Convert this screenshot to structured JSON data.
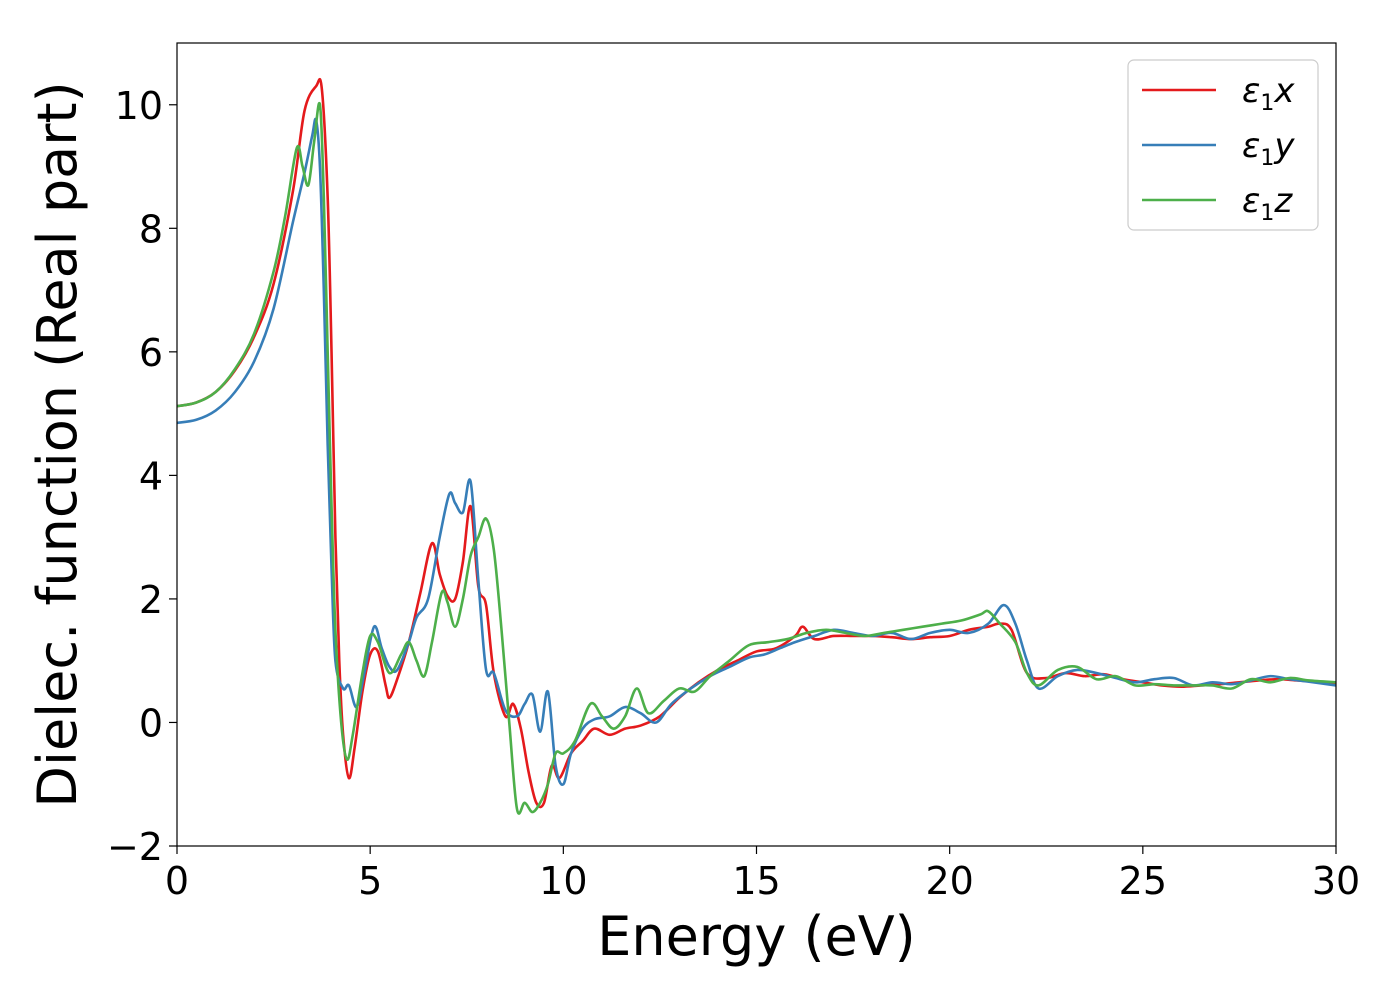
{
  "chart_data": {
    "type": "line",
    "title": "",
    "xlabel": "Energy (eV)",
    "ylabel": "Dielec. function (Real part)",
    "xlim": [
      0,
      30
    ],
    "ylim": [
      -2,
      11
    ],
    "xticks": [
      0,
      5,
      10,
      15,
      20,
      25,
      30
    ],
    "yticks": [
      -2,
      0,
      2,
      4,
      6,
      8,
      10
    ],
    "xtick_labels": [
      "0",
      "5",
      "10",
      "15",
      "20",
      "25",
      "30"
    ],
    "ytick_labels": [
      "−2",
      "0",
      "2",
      "4",
      "6",
      "8",
      "10"
    ],
    "grid": false,
    "legend_position": "top-right",
    "series": [
      {
        "name": "ε1x",
        "legend_base": "ε",
        "legend_sub": "1",
        "legend_suffix": "x",
        "color": "#e41a1c",
        "points": [
          [
            0,
            5.12
          ],
          [
            0.5,
            5.18
          ],
          [
            1.0,
            5.35
          ],
          [
            1.5,
            5.7
          ],
          [
            2.0,
            6.25
          ],
          [
            2.5,
            7.1
          ],
          [
            3.0,
            8.6
          ],
          [
            3.3,
            9.9
          ],
          [
            3.6,
            10.3
          ],
          [
            3.75,
            10.25
          ],
          [
            3.9,
            8.5
          ],
          [
            4.0,
            6.0
          ],
          [
            4.1,
            3.0
          ],
          [
            4.2,
            1.0
          ],
          [
            4.3,
            -0.2
          ],
          [
            4.45,
            -0.9
          ],
          [
            4.6,
            -0.4
          ],
          [
            4.8,
            0.5
          ],
          [
            5.0,
            1.1
          ],
          [
            5.2,
            1.15
          ],
          [
            5.4,
            0.6
          ],
          [
            5.5,
            0.4
          ],
          [
            5.7,
            0.7
          ],
          [
            6.0,
            1.3
          ],
          [
            6.3,
            2.1
          ],
          [
            6.6,
            2.9
          ],
          [
            6.8,
            2.4
          ],
          [
            7.0,
            2.05
          ],
          [
            7.2,
            2.0
          ],
          [
            7.4,
            2.6
          ],
          [
            7.6,
            3.5
          ],
          [
            7.8,
            2.2
          ],
          [
            8.0,
            1.9
          ],
          [
            8.2,
            0.8
          ],
          [
            8.5,
            0.1
          ],
          [
            8.7,
            0.3
          ],
          [
            8.9,
            -0.1
          ],
          [
            9.1,
            -0.8
          ],
          [
            9.3,
            -1.3
          ],
          [
            9.5,
            -1.3
          ],
          [
            9.7,
            -0.7
          ],
          [
            9.9,
            -0.9
          ],
          [
            10.2,
            -0.5
          ],
          [
            10.5,
            -0.3
          ],
          [
            10.8,
            -0.1
          ],
          [
            11.2,
            -0.2
          ],
          [
            11.6,
            -0.1
          ],
          [
            12.0,
            -0.05
          ],
          [
            12.5,
            0.1
          ],
          [
            13.0,
            0.4
          ],
          [
            13.5,
            0.65
          ],
          [
            14.0,
            0.85
          ],
          [
            14.5,
            1.0
          ],
          [
            15.0,
            1.15
          ],
          [
            15.5,
            1.2
          ],
          [
            16.0,
            1.4
          ],
          [
            16.2,
            1.55
          ],
          [
            16.5,
            1.35
          ],
          [
            17.0,
            1.4
          ],
          [
            17.5,
            1.4
          ],
          [
            18.0,
            1.4
          ],
          [
            18.5,
            1.38
          ],
          [
            19.0,
            1.35
          ],
          [
            19.5,
            1.38
          ],
          [
            20.0,
            1.4
          ],
          [
            20.5,
            1.5
          ],
          [
            21.0,
            1.55
          ],
          [
            21.3,
            1.6
          ],
          [
            21.6,
            1.5
          ],
          [
            22.0,
            0.8
          ],
          [
            22.5,
            0.72
          ],
          [
            23.0,
            0.8
          ],
          [
            23.5,
            0.75
          ],
          [
            24.0,
            0.78
          ],
          [
            24.5,
            0.7
          ],
          [
            25.0,
            0.65
          ],
          [
            25.5,
            0.6
          ],
          [
            26.0,
            0.58
          ],
          [
            26.5,
            0.6
          ],
          [
            27.0,
            0.62
          ],
          [
            27.5,
            0.65
          ],
          [
            28.0,
            0.68
          ],
          [
            28.5,
            0.7
          ],
          [
            29.0,
            0.68
          ],
          [
            29.5,
            0.66
          ],
          [
            30.0,
            0.64
          ]
        ]
      },
      {
        "name": "ε1y",
        "legend_base": "ε",
        "legend_sub": "1",
        "legend_suffix": "y",
        "color": "#377eb8",
        "points": [
          [
            0,
            4.85
          ],
          [
            0.5,
            4.9
          ],
          [
            1.0,
            5.05
          ],
          [
            1.5,
            5.35
          ],
          [
            2.0,
            5.85
          ],
          [
            2.5,
            6.7
          ],
          [
            3.0,
            8.1
          ],
          [
            3.3,
            8.9
          ],
          [
            3.5,
            9.5
          ],
          [
            3.6,
            9.75
          ],
          [
            3.7,
            9.0
          ],
          [
            3.8,
            7.0
          ],
          [
            3.9,
            4.5
          ],
          [
            4.0,
            2.5
          ],
          [
            4.1,
            1.0
          ],
          [
            4.3,
            0.55
          ],
          [
            4.45,
            0.6
          ],
          [
            4.65,
            0.25
          ],
          [
            4.85,
            0.8
          ],
          [
            5.1,
            1.55
          ],
          [
            5.3,
            1.2
          ],
          [
            5.5,
            0.9
          ],
          [
            5.7,
            0.85
          ],
          [
            6.0,
            1.3
          ],
          [
            6.2,
            1.7
          ],
          [
            6.5,
            2.0
          ],
          [
            6.8,
            3.0
          ],
          [
            7.05,
            3.7
          ],
          [
            7.2,
            3.55
          ],
          [
            7.4,
            3.4
          ],
          [
            7.6,
            3.9
          ],
          [
            7.8,
            2.3
          ],
          [
            8.0,
            0.85
          ],
          [
            8.2,
            0.8
          ],
          [
            8.5,
            0.2
          ],
          [
            8.8,
            0.1
          ],
          [
            9.0,
            0.3
          ],
          [
            9.2,
            0.45
          ],
          [
            9.4,
            -0.15
          ],
          [
            9.6,
            0.5
          ],
          [
            9.8,
            -0.7
          ],
          [
            10.0,
            -1.0
          ],
          [
            10.2,
            -0.5
          ],
          [
            10.5,
            -0.1
          ],
          [
            10.8,
            0.05
          ],
          [
            11.2,
            0.1
          ],
          [
            11.6,
            0.25
          ],
          [
            12.0,
            0.15
          ],
          [
            12.4,
            0.0
          ],
          [
            12.8,
            0.3
          ],
          [
            13.3,
            0.55
          ],
          [
            13.8,
            0.75
          ],
          [
            14.3,
            0.9
          ],
          [
            14.8,
            1.05
          ],
          [
            15.2,
            1.1
          ],
          [
            15.6,
            1.2
          ],
          [
            16.0,
            1.3
          ],
          [
            16.5,
            1.4
          ],
          [
            17.0,
            1.5
          ],
          [
            17.5,
            1.45
          ],
          [
            18.0,
            1.4
          ],
          [
            18.5,
            1.45
          ],
          [
            19.0,
            1.35
          ],
          [
            19.5,
            1.45
          ],
          [
            20.0,
            1.5
          ],
          [
            20.5,
            1.45
          ],
          [
            21.0,
            1.6
          ],
          [
            21.4,
            1.9
          ],
          [
            21.7,
            1.6
          ],
          [
            22.0,
            1.0
          ],
          [
            22.3,
            0.55
          ],
          [
            22.8,
            0.75
          ],
          [
            23.3,
            0.85
          ],
          [
            23.8,
            0.8
          ],
          [
            24.3,
            0.72
          ],
          [
            24.8,
            0.65
          ],
          [
            25.3,
            0.7
          ],
          [
            25.8,
            0.72
          ],
          [
            26.3,
            0.6
          ],
          [
            26.8,
            0.65
          ],
          [
            27.3,
            0.62
          ],
          [
            27.8,
            0.68
          ],
          [
            28.3,
            0.75
          ],
          [
            28.8,
            0.7
          ],
          [
            29.3,
            0.66
          ],
          [
            30.0,
            0.6
          ]
        ]
      },
      {
        "name": "ε1z",
        "legend_base": "ε",
        "legend_sub": "1",
        "legend_suffix": "z",
        "color": "#4daf4a",
        "points": [
          [
            0,
            5.12
          ],
          [
            0.5,
            5.18
          ],
          [
            1.0,
            5.35
          ],
          [
            1.5,
            5.72
          ],
          [
            2.0,
            6.3
          ],
          [
            2.5,
            7.3
          ],
          [
            2.8,
            8.2
          ],
          [
            3.1,
            9.3
          ],
          [
            3.25,
            9.0
          ],
          [
            3.4,
            8.7
          ],
          [
            3.55,
            9.4
          ],
          [
            3.7,
            10.0
          ],
          [
            3.8,
            8.5
          ],
          [
            3.9,
            6.0
          ],
          [
            4.0,
            3.5
          ],
          [
            4.1,
            1.5
          ],
          [
            4.25,
            0.0
          ],
          [
            4.4,
            -0.6
          ],
          [
            4.55,
            -0.2
          ],
          [
            4.8,
            0.8
          ],
          [
            5.0,
            1.4
          ],
          [
            5.2,
            1.3
          ],
          [
            5.5,
            0.8
          ],
          [
            5.8,
            1.1
          ],
          [
            6.0,
            1.3
          ],
          [
            6.2,
            1.0
          ],
          [
            6.4,
            0.75
          ],
          [
            6.6,
            1.3
          ],
          [
            6.85,
            2.1
          ],
          [
            7.0,
            1.95
          ],
          [
            7.2,
            1.55
          ],
          [
            7.4,
            2.0
          ],
          [
            7.6,
            2.7
          ],
          [
            7.8,
            3.0
          ],
          [
            8.0,
            3.3
          ],
          [
            8.2,
            2.8
          ],
          [
            8.4,
            1.5
          ],
          [
            8.6,
            0.0
          ],
          [
            8.8,
            -1.4
          ],
          [
            9.0,
            -1.3
          ],
          [
            9.2,
            -1.45
          ],
          [
            9.4,
            -1.3
          ],
          [
            9.6,
            -1.0
          ],
          [
            9.8,
            -0.5
          ],
          [
            10.0,
            -0.5
          ],
          [
            10.3,
            -0.3
          ],
          [
            10.7,
            0.3
          ],
          [
            11.0,
            0.1
          ],
          [
            11.3,
            -0.1
          ],
          [
            11.6,
            0.1
          ],
          [
            11.9,
            0.55
          ],
          [
            12.2,
            0.15
          ],
          [
            12.6,
            0.35
          ],
          [
            13.0,
            0.55
          ],
          [
            13.4,
            0.5
          ],
          [
            13.8,
            0.75
          ],
          [
            14.3,
            1.0
          ],
          [
            14.8,
            1.25
          ],
          [
            15.3,
            1.3
          ],
          [
            15.8,
            1.35
          ],
          [
            16.3,
            1.45
          ],
          [
            16.8,
            1.5
          ],
          [
            17.3,
            1.45
          ],
          [
            17.8,
            1.4
          ],
          [
            18.3,
            1.45
          ],
          [
            18.8,
            1.5
          ],
          [
            19.3,
            1.55
          ],
          [
            19.8,
            1.6
          ],
          [
            20.3,
            1.65
          ],
          [
            20.8,
            1.75
          ],
          [
            21.0,
            1.8
          ],
          [
            21.3,
            1.6
          ],
          [
            21.7,
            1.3
          ],
          [
            22.0,
            0.8
          ],
          [
            22.3,
            0.6
          ],
          [
            22.8,
            0.85
          ],
          [
            23.3,
            0.9
          ],
          [
            23.8,
            0.7
          ],
          [
            24.3,
            0.75
          ],
          [
            24.8,
            0.6
          ],
          [
            25.3,
            0.62
          ],
          [
            25.8,
            0.6
          ],
          [
            26.3,
            0.6
          ],
          [
            26.8,
            0.6
          ],
          [
            27.3,
            0.55
          ],
          [
            27.8,
            0.7
          ],
          [
            28.3,
            0.65
          ],
          [
            28.8,
            0.72
          ],
          [
            29.3,
            0.68
          ],
          [
            30.0,
            0.65
          ]
        ]
      }
    ]
  }
}
